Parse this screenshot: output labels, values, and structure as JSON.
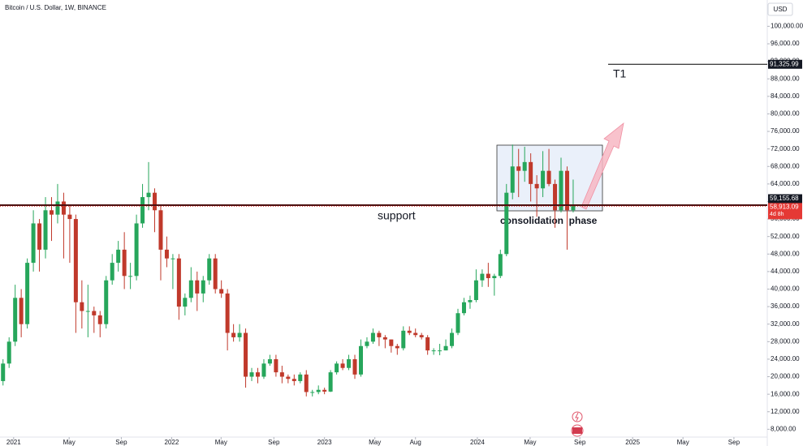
{
  "chart_data": {
    "type": "candlestick",
    "title": "Bitcoin / U.S. Dollar, 1W, BINANCE",
    "currency": "USD",
    "up_color": "#26a65b",
    "down_color": "#c0392b",
    "grid": false,
    "ylim": [
      6400,
      106000
    ],
    "yticks": [
      {
        "value": 8000,
        "label": "8,000.00"
      },
      {
        "value": 12000,
        "label": "12,000.00"
      },
      {
        "value": 16000,
        "label": "16,000.00"
      },
      {
        "value": 20000,
        "label": "20,000.00"
      },
      {
        "value": 24000,
        "label": "24,000.00"
      },
      {
        "value": 28000,
        "label": "28,000.00"
      },
      {
        "value": 32000,
        "label": "32,000.00"
      },
      {
        "value": 36000,
        "label": "36,000.00"
      },
      {
        "value": 40000,
        "label": "40,000.00"
      },
      {
        "value": 44000,
        "label": "44,000.00"
      },
      {
        "value": 48000,
        "label": "48,000.00"
      },
      {
        "value": 52000,
        "label": "52,000.00"
      },
      {
        "value": 56000,
        "label": "56,000.00"
      },
      {
        "value": 60000,
        "label": "60,000.00"
      },
      {
        "value": 64000,
        "label": "64,000.00"
      },
      {
        "value": 68000,
        "label": "68,000.00"
      },
      {
        "value": 72000,
        "label": "72,000.00"
      },
      {
        "value": 76000,
        "label": "76,000.00"
      },
      {
        "value": 80000,
        "label": "80,000.00"
      },
      {
        "value": 84000,
        "label": "84,000.00"
      },
      {
        "value": 88000,
        "label": "88,000.00"
      },
      {
        "value": 92000,
        "label": "92,000.00"
      },
      {
        "value": 96000,
        "label": "96,000.00"
      },
      {
        "value": 100000,
        "label": "100,000.00"
      }
    ],
    "xlim": [
      0,
      253
    ],
    "xticks": [
      {
        "value": 4.5,
        "label": "2021"
      },
      {
        "value": 22.8,
        "label": "May"
      },
      {
        "value": 40,
        "label": "Sep"
      },
      {
        "value": 56.6,
        "label": "2022"
      },
      {
        "value": 72.9,
        "label": "May"
      },
      {
        "value": 90.3,
        "label": "Sep"
      },
      {
        "value": 107,
        "label": "2023"
      },
      {
        "value": 123.6,
        "label": "May"
      },
      {
        "value": 137,
        "label": "Aug"
      },
      {
        "value": 157.4,
        "label": "2024"
      },
      {
        "value": 174.8,
        "label": "May"
      },
      {
        "value": 191.2,
        "label": "Sep"
      },
      {
        "value": 208.6,
        "label": "2025"
      },
      {
        "value": 225.2,
        "label": "May"
      },
      {
        "value": 242,
        "label": "Sep"
      }
    ],
    "x": [
      1,
      3,
      5,
      7,
      9,
      11,
      13,
      15,
      17,
      19,
      21,
      23,
      25,
      27,
      29,
      31,
      33,
      35,
      37,
      39,
      41,
      43,
      45,
      47,
      49,
      51,
      53,
      55,
      57,
      59,
      61,
      63,
      65,
      67,
      69,
      71,
      73,
      75,
      77,
      79,
      81,
      83,
      85,
      87,
      89,
      91,
      93,
      95,
      97,
      99,
      101,
      103,
      105,
      107,
      109,
      111,
      113,
      115,
      117,
      119,
      121,
      123,
      125,
      127,
      129,
      131,
      133,
      135,
      137,
      139,
      141,
      143,
      145,
      147,
      149,
      151,
      153,
      155,
      157,
      159,
      161,
      163,
      165,
      167,
      169,
      171,
      173,
      175,
      177,
      179,
      181,
      183,
      185,
      187,
      189
    ],
    "ohlc": [
      [
        19000,
        24000,
        18000,
        23000
      ],
      [
        23000,
        29000,
        22000,
        28000
      ],
      [
        28000,
        41000,
        27000,
        38000
      ],
      [
        38000,
        40000,
        29000,
        32000
      ],
      [
        32000,
        47000,
        31000,
        46000
      ],
      [
        46000,
        58000,
        44000,
        55000
      ],
      [
        55000,
        56000,
        44000,
        49000
      ],
      [
        49000,
        61000,
        47000,
        58000
      ],
      [
        58000,
        61000,
        51000,
        57000
      ],
      [
        57000,
        64000,
        55000,
        60000
      ],
      [
        60000,
        62000,
        47000,
        57000
      ],
      [
        57000,
        59000,
        46000,
        56000
      ],
      [
        56000,
        57000,
        30000,
        37000
      ],
      [
        37000,
        42000,
        31000,
        35000
      ],
      [
        35000,
        41000,
        29000,
        35000
      ],
      [
        35000,
        36000,
        30000,
        34000
      ],
      [
        34000,
        35000,
        29000,
        32000
      ],
      [
        32000,
        43000,
        31000,
        42000
      ],
      [
        42000,
        48000,
        41000,
        46000
      ],
      [
        46000,
        51000,
        44000,
        49000
      ],
      [
        49000,
        53000,
        40000,
        43000
      ],
      [
        43000,
        46000,
        40000,
        43000
      ],
      [
        43000,
        57000,
        42000,
        55000
      ],
      [
        55000,
        64000,
        54000,
        61000
      ],
      [
        61000,
        69000,
        58000,
        62000
      ],
      [
        62000,
        63000,
        53000,
        58000
      ],
      [
        58000,
        59000,
        42000,
        49000
      ],
      [
        49000,
        52000,
        45000,
        47000
      ],
      [
        47000,
        48000,
        40000,
        47000
      ],
      [
        47000,
        48000,
        33000,
        36000
      ],
      [
        36000,
        39000,
        34000,
        38000
      ],
      [
        38000,
        45000,
        37000,
        42000
      ],
      [
        42000,
        44000,
        35000,
        39000
      ],
      [
        39000,
        43000,
        37000,
        42000
      ],
      [
        42000,
        48000,
        41000,
        47000
      ],
      [
        47000,
        48000,
        39000,
        40000
      ],
      [
        40000,
        42000,
        38000,
        39000
      ],
      [
        39000,
        40000,
        26000,
        30000
      ],
      [
        30000,
        32000,
        28000,
        29000
      ],
      [
        29000,
        32000,
        28000,
        30000
      ],
      [
        30000,
        31000,
        17500,
        20000
      ],
      [
        20000,
        22000,
        19000,
        21000
      ],
      [
        21000,
        22000,
        18500,
        20000
      ],
      [
        20000,
        24000,
        19500,
        23000
      ],
      [
        23000,
        25000,
        22500,
        24000
      ],
      [
        24000,
        25000,
        20000,
        21000
      ],
      [
        21000,
        22500,
        18500,
        20000
      ],
      [
        20000,
        20500,
        18500,
        19500
      ],
      [
        19500,
        20500,
        18000,
        19000
      ],
      [
        19000,
        21000,
        18500,
        20500
      ],
      [
        20500,
        21500,
        15500,
        16500
      ],
      [
        16500,
        17000,
        15500,
        16500
      ],
      [
        16500,
        18000,
        16000,
        17000
      ],
      [
        17000,
        17500,
        16000,
        16600
      ],
      [
        16600,
        21500,
        16500,
        21000
      ],
      [
        21000,
        23500,
        20500,
        23000
      ],
      [
        23000,
        24000,
        21500,
        22000
      ],
      [
        22000,
        25000,
        21500,
        24000
      ],
      [
        24000,
        25000,
        19500,
        20500
      ],
      [
        20500,
        28500,
        20000,
        27000
      ],
      [
        27000,
        29000,
        26500,
        28000
      ],
      [
        28000,
        31000,
        27500,
        30000
      ],
      [
        30000,
        30500,
        27000,
        29000
      ],
      [
        29000,
        29500,
        26500,
        28500
      ],
      [
        28500,
        28500,
        25500,
        27000
      ],
      [
        27000,
        27500,
        25000,
        26500
      ],
      [
        26500,
        31500,
        26000,
        30500
      ],
      [
        30500,
        31500,
        29500,
        30000
      ],
      [
        30000,
        31000,
        29000,
        29500
      ],
      [
        29500,
        30000,
        28500,
        29000
      ],
      [
        29000,
        29500,
        25000,
        26000
      ],
      [
        26000,
        26500,
        25000,
        26000
      ],
      [
        26000,
        27500,
        24900,
        26000
      ],
      [
        26000,
        28500,
        26000,
        27000
      ],
      [
        27000,
        31000,
        26500,
        30000
      ],
      [
        30000,
        35500,
        29500,
        34500
      ],
      [
        34500,
        38000,
        34000,
        37000
      ],
      [
        37000,
        38500,
        35500,
        37500
      ],
      [
        37500,
        44500,
        37000,
        42000
      ],
      [
        42000,
        44500,
        40500,
        43500
      ],
      [
        43500,
        46000,
        40500,
        42500
      ],
      [
        42500,
        43500,
        38500,
        43000
      ],
      [
        43000,
        49000,
        42500,
        48000
      ],
      [
        48000,
        64000,
        47500,
        62000
      ],
      [
        62000,
        73000,
        60500,
        68000
      ],
      [
        68000,
        72000,
        61000,
        67000
      ],
      [
        67000,
        72500,
        64500,
        69000
      ],
      [
        69000,
        71000,
        60000,
        64000
      ],
      [
        64000,
        66000,
        56500,
        63000
      ],
      [
        63000,
        71500,
        61000,
        67000
      ],
      [
        67000,
        72000,
        63500,
        64000
      ],
      [
        64000,
        65000,
        54000,
        58000
      ],
      [
        58000,
        70000,
        57500,
        67000
      ],
      [
        67000,
        68000,
        49000,
        58000
      ],
      [
        58000,
        65000,
        57500,
        59000
      ]
    ],
    "target": {
      "value": 91325.99,
      "label": "91,325.99",
      "text": "T1"
    },
    "support": {
      "value": 59155.68,
      "label": "59,155.68",
      "text": "support"
    },
    "last_price": {
      "value": 58913.09,
      "label": "58,913.09",
      "countdown": "4d 8h"
    },
    "zone_text": "consolidation  phase"
  }
}
